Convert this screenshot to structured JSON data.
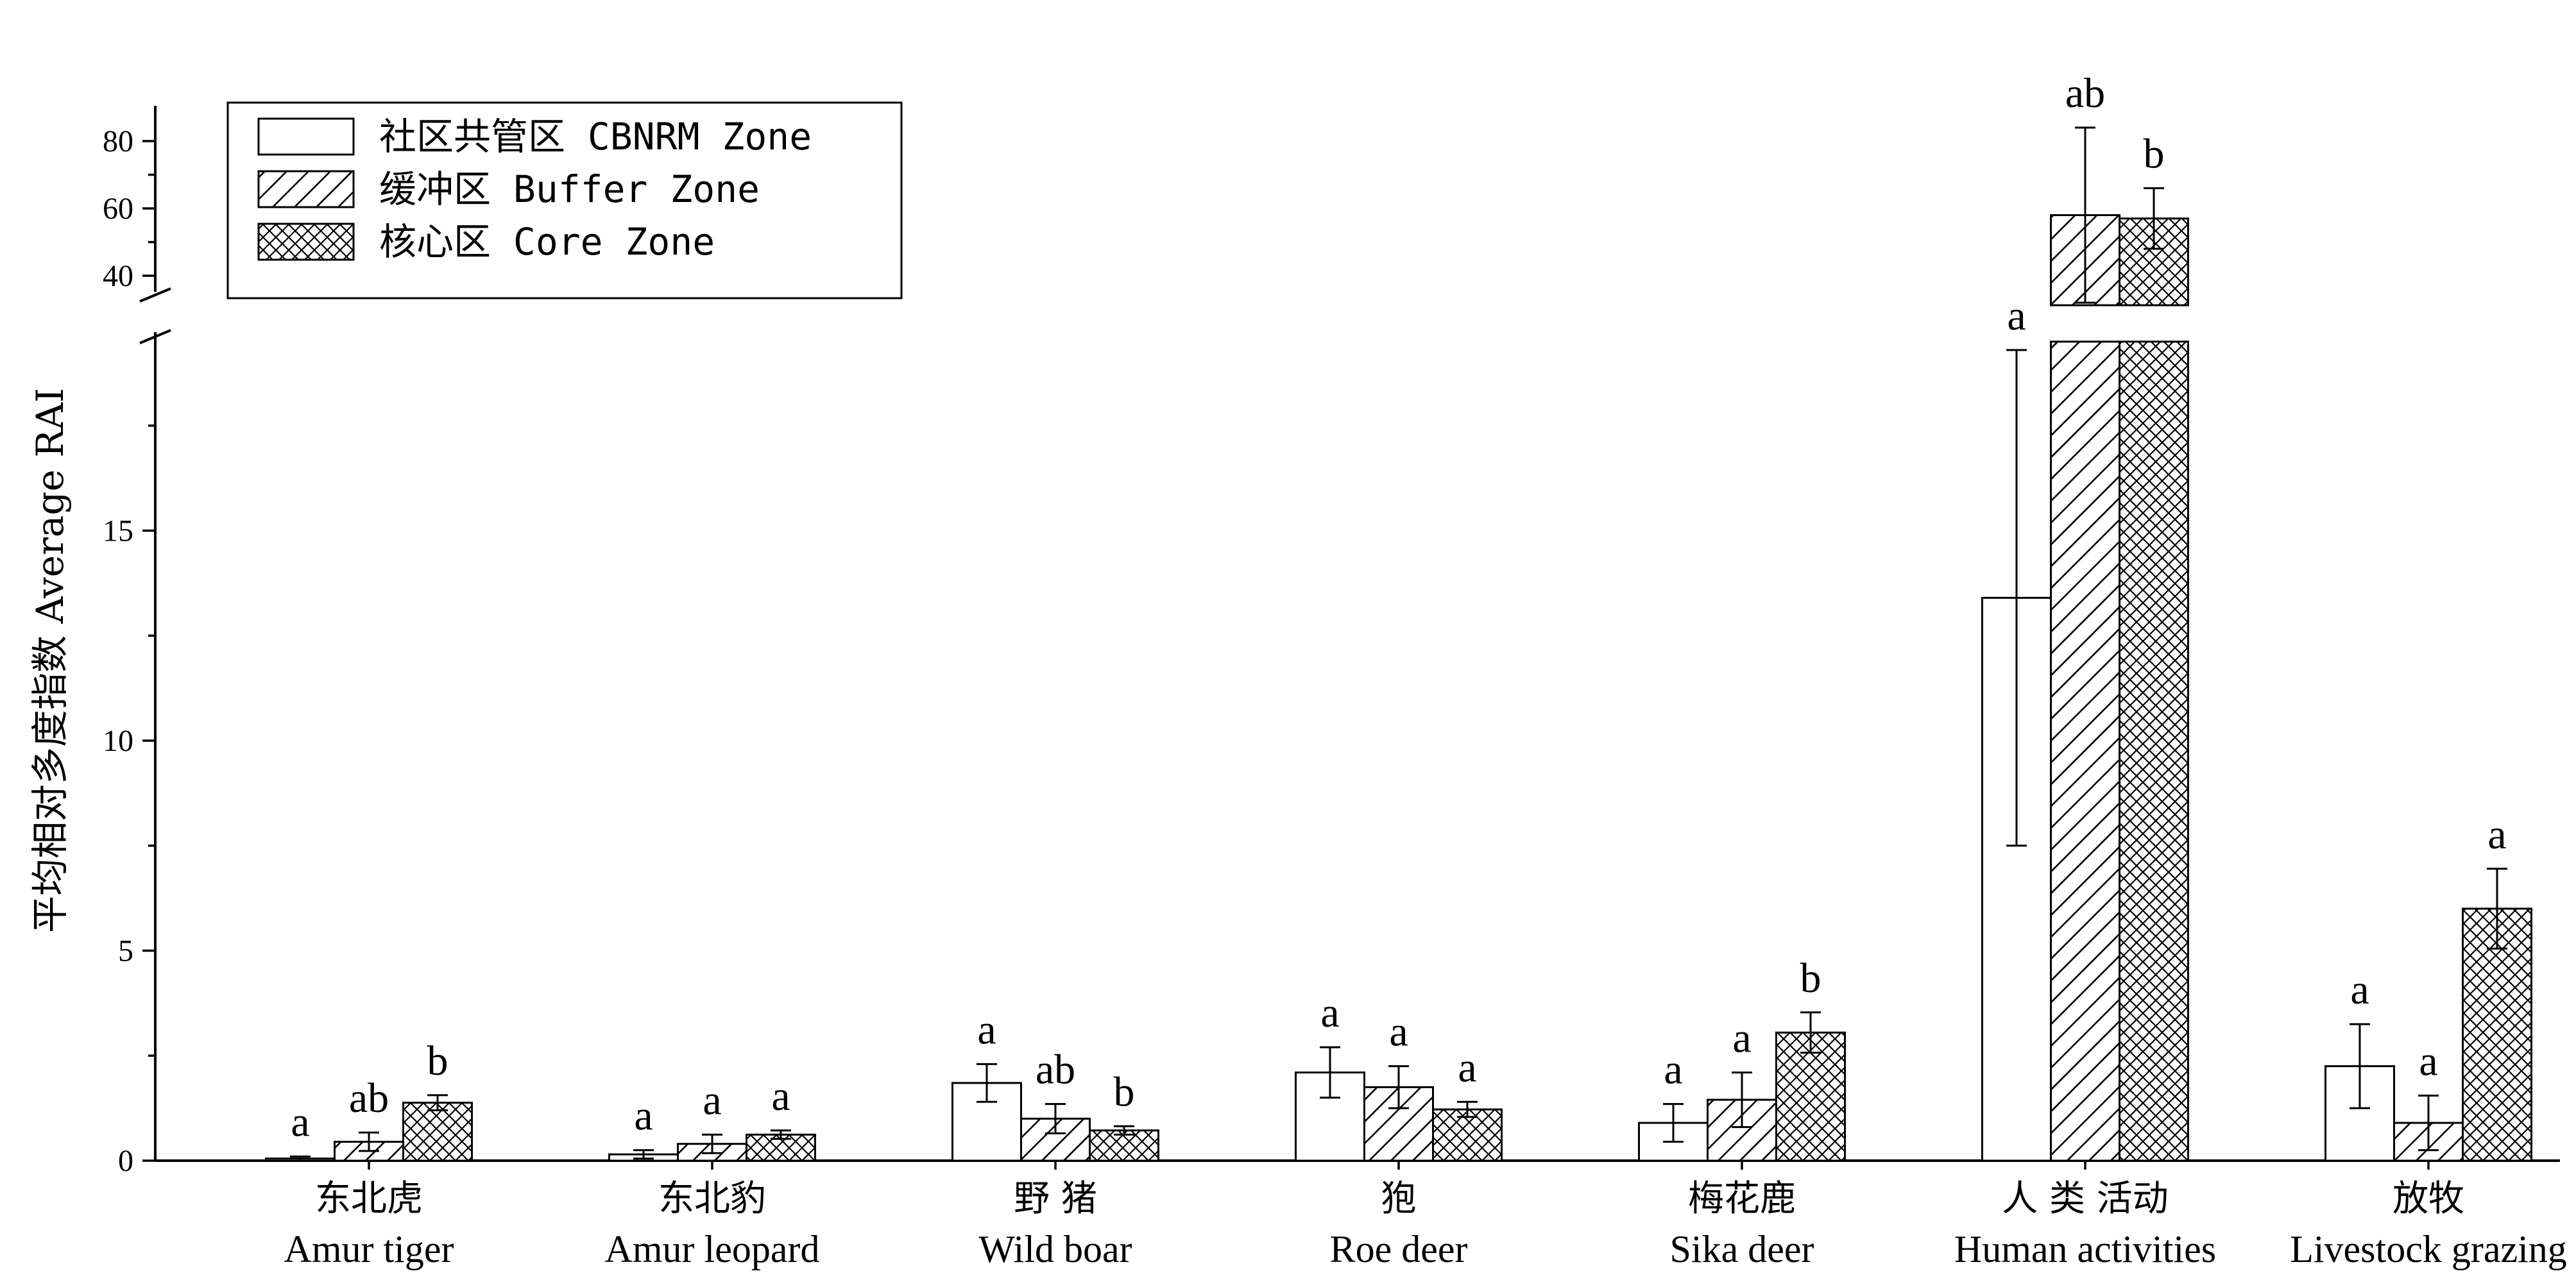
{
  "chart_data": {
    "type": "bar",
    "ylabel": "平均相对多度指数 Average RAI",
    "y_axis": {
      "lower_segment": {
        "range": [
          0,
          19.5
        ],
        "ticks": [
          0,
          5,
          10,
          15
        ],
        "tick_labels": [
          "0",
          "5",
          "10",
          "15"
        ]
      },
      "upper_segment": {
        "range": [
          30,
          90
        ],
        "ticks": [
          40,
          60,
          80
        ],
        "tick_labels": [
          "40",
          "60",
          "80"
        ]
      },
      "broken": true
    },
    "categories": [
      {
        "cn": "东北虎",
        "en": "Amur tiger"
      },
      {
        "cn": "东北豹",
        "en": "Amur leopard"
      },
      {
        "cn": "野 猪",
        "en": "Wild boar"
      },
      {
        "cn": "狍",
        "en": "Roe deer"
      },
      {
        "cn": "梅花鹿",
        "en": "Sika deer"
      },
      {
        "cn": "人 类 活动",
        "en": "Human activities"
      },
      {
        "cn": "放牧",
        "en": "Livestock grazing"
      }
    ],
    "series": [
      {
        "name": "社区共管区 CBNRM Zone",
        "pattern": "none",
        "values": [
          0.05,
          0.15,
          1.85,
          2.1,
          0.9,
          13.4,
          2.25
        ],
        "errors": [
          0.05,
          0.1,
          0.45,
          0.6,
          0.45,
          5.9,
          1.0
        ],
        "labels": [
          "a",
          "a",
          "a",
          "a",
          "a",
          "a",
          "a"
        ]
      },
      {
        "name": "缓冲区 Buffer Zone",
        "pattern": "hatch",
        "values": [
          0.45,
          0.4,
          1.0,
          1.75,
          1.45,
          58,
          0.9
        ],
        "errors": [
          0.22,
          0.22,
          0.35,
          0.5,
          0.65,
          26,
          0.65
        ],
        "labels": [
          "ab",
          "a",
          "ab",
          "a",
          "a",
          "ab",
          "a"
        ]
      },
      {
        "name": "核心区 Core Zone",
        "pattern": "crosshatch",
        "values": [
          1.38,
          0.62,
          0.72,
          1.22,
          3.05,
          57,
          6.0
        ],
        "errors": [
          0.18,
          0.1,
          0.1,
          0.18,
          0.48,
          9,
          0.95
        ],
        "labels": [
          "b",
          "a",
          "b",
          "a",
          "b",
          "b",
          "a"
        ]
      }
    ],
    "legend_position": "top-left",
    "grid": false,
    "colors": {
      "fill": "#ffffff",
      "stroke": "#000000"
    }
  }
}
